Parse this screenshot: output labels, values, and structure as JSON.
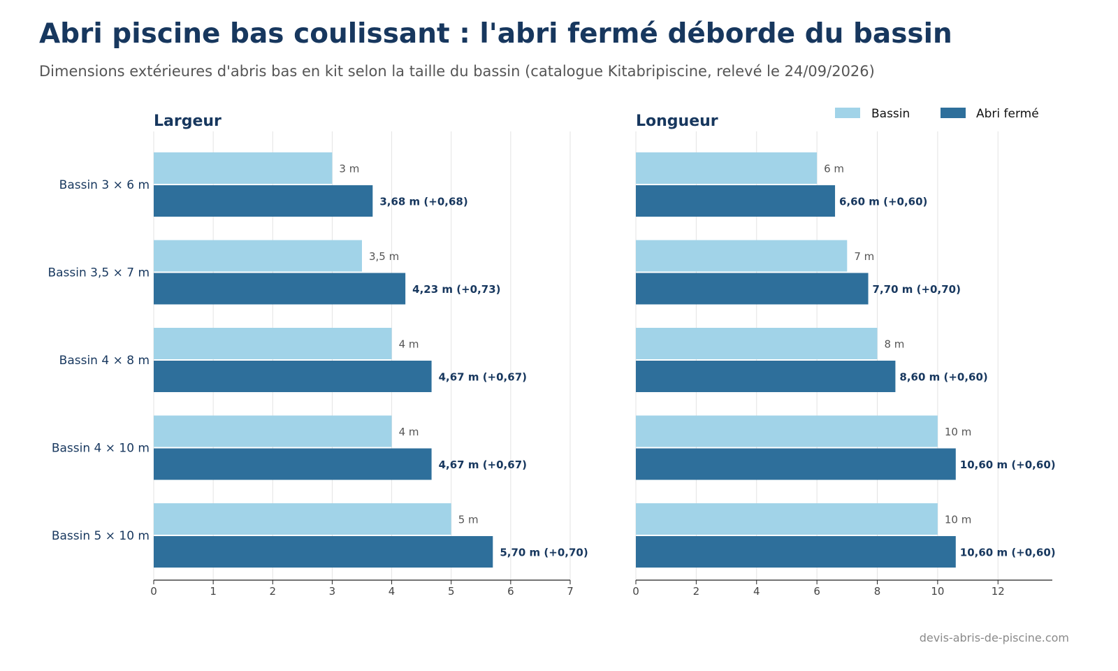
{
  "title": "Abri piscine bas coulissant : l'abri fermé déborde du bassin",
  "subtitle": "Dimensions extérieures d'abris bas en kit selon la taille du bassin (catalogue Kitabripiscine, relevé le 24/09/2026)",
  "source": "devis-abris-de-piscine.com",
  "colors": {
    "bassin": "#a1d3e8",
    "abri": "#2e6f9b",
    "title": "#17375e",
    "label_muted": "#555555"
  },
  "legend": {
    "position": "top-right",
    "items": [
      "Bassin",
      "Abri fermé"
    ]
  },
  "chart_data": [
    {
      "type": "bar",
      "orientation": "horizontal",
      "title": "Largeur",
      "categories": [
        "Bassin 3 × 6 m",
        "Bassin 3,5 × 7 m",
        "Bassin 4 × 8 m",
        "Bassin 4 × 10 m",
        "Bassin 5 × 10 m"
      ],
      "series": [
        {
          "name": "Bassin",
          "values": [
            3,
            3.5,
            4,
            4,
            5
          ],
          "labels": [
            "3 m",
            "3,5 m",
            "4 m",
            "4 m",
            "5 m"
          ]
        },
        {
          "name": "Abri fermé",
          "values": [
            3.68,
            4.23,
            4.67,
            4.67,
            5.7
          ],
          "labels": [
            "3,68 m (+0,68)",
            "4,23 m (+0,73)",
            "4,67 m (+0,67)",
            "4,67 m (+0,67)",
            "5,70 m (+0,70)"
          ]
        }
      ],
      "xlim": [
        0,
        7
      ],
      "xticks": [
        0,
        1,
        2,
        3,
        4,
        5,
        6,
        7
      ],
      "grid": "vertical"
    },
    {
      "type": "bar",
      "orientation": "horizontal",
      "title": "Longueur",
      "categories": [
        "Bassin 3 × 6 m",
        "Bassin 3,5 × 7 m",
        "Bassin 4 × 8 m",
        "Bassin 4 × 10 m",
        "Bassin 5 × 10 m"
      ],
      "series": [
        {
          "name": "Bassin",
          "values": [
            6,
            7,
            8,
            10,
            10
          ],
          "labels": [
            "6 m",
            "7 m",
            "8 m",
            "10 m",
            "10 m"
          ]
        },
        {
          "name": "Abri fermé",
          "values": [
            6.6,
            7.7,
            8.6,
            10.6,
            10.6
          ],
          "labels": [
            "6,60 m (+0,60)",
            "7,70 m (+0,70)",
            "8,60 m (+0,60)",
            "10,60 m (+0,60)",
            "10,60 m (+0,60)"
          ]
        }
      ],
      "xlim": [
        0,
        13.8
      ],
      "xticks": [
        0,
        2,
        4,
        6,
        8,
        10,
        12
      ],
      "grid": "vertical"
    }
  ]
}
